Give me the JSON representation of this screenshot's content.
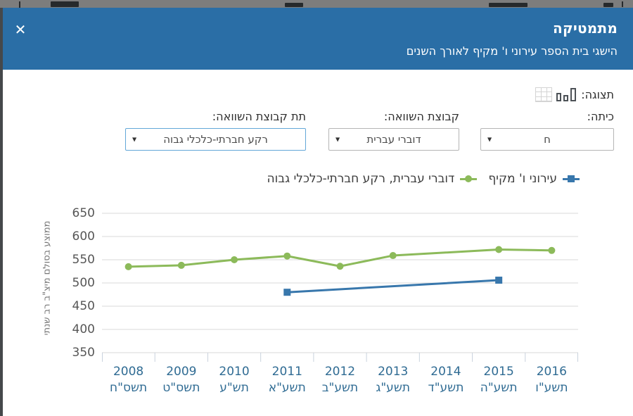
{
  "modal": {
    "title": "מתמטיקה",
    "subtitle": "הישגי בית הספר עירוני ו' מקיף לאורך השנים",
    "close_glyph": "✕"
  },
  "display": {
    "label": "תצוגה:",
    "chart_view_icon": "bar-chart-view",
    "table_view_icon": "grid-table-view"
  },
  "filters": [
    {
      "label": "כיתה:",
      "value": "ח"
    },
    {
      "label": "קבוצת השוואה:",
      "value": "דוברי עברית"
    },
    {
      "label": "תת קבוצת השוואה:",
      "value": "רקע חברתי-כלכלי גבוה"
    }
  ],
  "legend": [
    {
      "label": "עירוני ו' מקיף",
      "color": "#3877ac",
      "marker": "square"
    },
    {
      "label": "דוברי עברית, רקע חברתי-כלכלי גבוה",
      "color": "#8cba5a",
      "marker": "circle"
    }
  ],
  "chart_data": {
    "type": "line",
    "ylabel": "ממוצע בסולם מיצ\"ב רב שנתי",
    "ylim": [
      350,
      650
    ],
    "yticks": [
      650,
      600,
      550,
      500,
      450,
      400,
      350
    ],
    "grid": true,
    "legend_position": "top",
    "categories": [
      {
        "year": "2008",
        "hebrew": "תשס\"ח"
      },
      {
        "year": "2009",
        "hebrew": "תשס\"ט"
      },
      {
        "year": "2010",
        "hebrew": "תש\"ע"
      },
      {
        "year": "2011",
        "hebrew": "תשע\"א"
      },
      {
        "year": "2012",
        "hebrew": "תשע\"ב"
      },
      {
        "year": "2013",
        "hebrew": "תשע\"ג"
      },
      {
        "year": "2014",
        "hebrew": "תשע\"ד"
      },
      {
        "year": "2015",
        "hebrew": "תשע\"ה"
      },
      {
        "year": "2016",
        "hebrew": "תשע\"ו"
      }
    ],
    "series": [
      {
        "name": "עירוני ו' מקיף",
        "color": "#3877ac",
        "marker": "square",
        "values": [
          null,
          null,
          null,
          480,
          null,
          null,
          null,
          506,
          null
        ],
        "connect_gaps": true
      },
      {
        "name": "דוברי עברית, רקע חברתי-כלכלי גבוה",
        "color": "#8cba5a",
        "marker": "circle",
        "values": [
          535,
          538,
          550,
          558,
          536,
          559,
          null,
          572,
          570
        ],
        "connect_gaps": true
      }
    ],
    "colors": {
      "grid_line": "#dadada",
      "axis_tick": "#c9d2dd",
      "x_label": "#2f6b93",
      "y_label": "#565656"
    }
  }
}
